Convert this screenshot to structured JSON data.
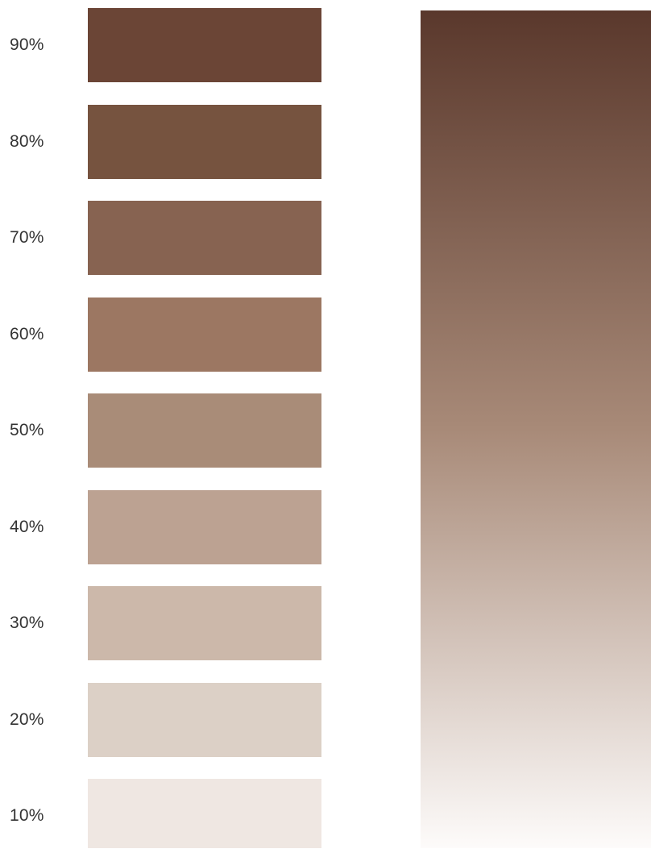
{
  "swatches": [
    {
      "label": "90%",
      "color": "#6b4536"
    },
    {
      "label": "80%",
      "color": "#76533f"
    },
    {
      "label": "70%",
      "color": "#876351"
    },
    {
      "label": "60%",
      "color": "#9c7762"
    },
    {
      "label": "50%",
      "color": "#a98c78"
    },
    {
      "label": "40%",
      "color": "#bca292"
    },
    {
      "label": "30%",
      "color": "#ccb8aa"
    },
    {
      "label": "20%",
      "color": "#dcd0c6"
    },
    {
      "label": "10%",
      "color": "#efe7e2"
    }
  ],
  "gradient": {
    "top_color": "#5a382c",
    "mid_color": "#a88a78",
    "bottom_color": "#fdfbfa"
  }
}
